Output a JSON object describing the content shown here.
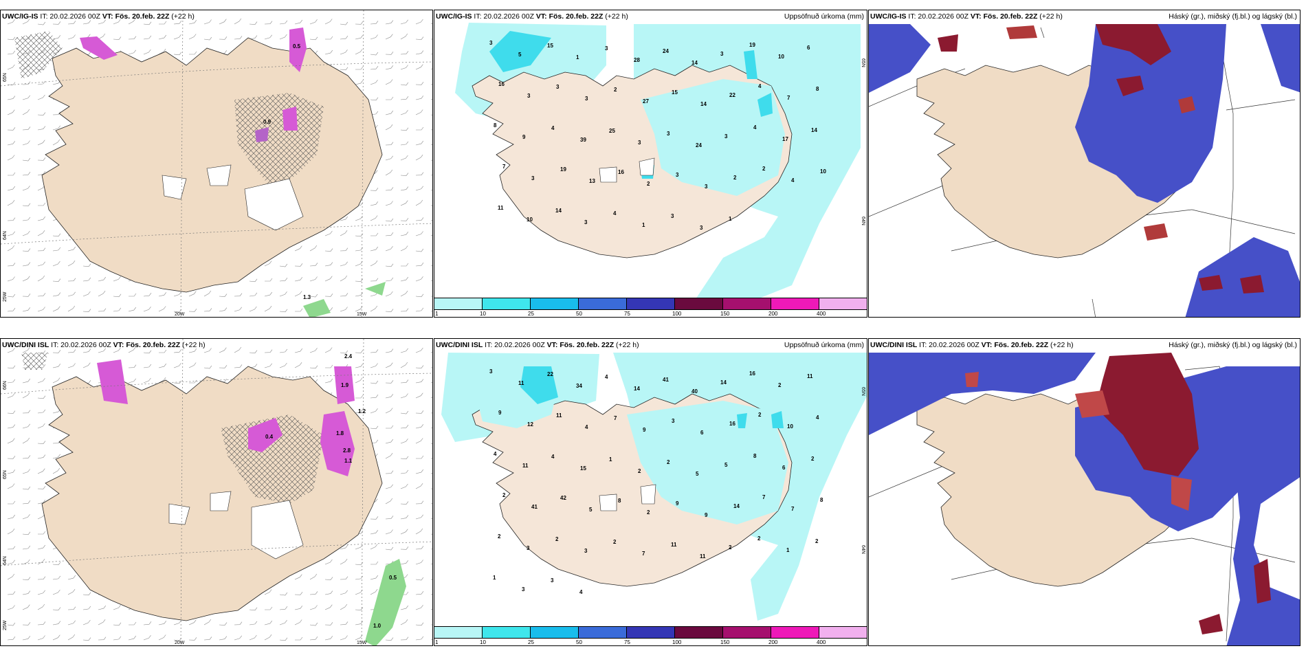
{
  "colors": {
    "land": "#f0dcc5",
    "sea": "#ffffff",
    "precip_light": "#b8f6f6",
    "precip_mid": "#3fdcec",
    "cloud_low": "#4650c8",
    "cloud_mid": "#4a88e8",
    "cloud_high": "#8b1a30",
    "snow_hatch": "#555555",
    "magenta": "#d65ad6",
    "green": "#8ed88e"
  },
  "panels": [
    {
      "id": "ig-wind",
      "title_model": "UWC/IG-IS",
      "title_it": "IT: 20.02.2026 00Z",
      "title_vt_label": "VT:",
      "title_vt": "Fös. 20.feb. 22Z",
      "title_lead": "(+22 h)",
      "right_title": "",
      "lon_labels": [
        "20W",
        "15W"
      ],
      "lat_labels": [
        "65N",
        "64N",
        "25W"
      ],
      "values": [
        "1.3",
        "0.9",
        "0.5"
      ]
    },
    {
      "id": "ig-precip",
      "title_model": "UWC/IG-IS",
      "title_it": "IT: 20.02.2026 00Z",
      "title_vt_label": "VT:",
      "title_vt": "Fös. 20.feb. 22Z",
      "title_lead": "(+22 h)",
      "right_title": "Uppsöfnuð úrkoma (mm)",
      "lat_labels": [
        "65N",
        "64N"
      ],
      "values": [
        "3",
        "5",
        "15",
        "1",
        "3",
        "28",
        "24",
        "14",
        "3",
        "19",
        "10",
        "6",
        "16",
        "3",
        "3",
        "3",
        "2",
        "27",
        "15",
        "14",
        "22",
        "4",
        "7",
        "8",
        "8",
        "9",
        "4",
        "39",
        "25",
        "3",
        "3",
        "24",
        "3",
        "4",
        "17",
        "14",
        "7",
        "3",
        "19",
        "13",
        "16",
        "2",
        "3",
        "3",
        "2",
        "2",
        "4",
        "10",
        "11",
        "10",
        "14",
        "3",
        "4",
        "1",
        "3",
        "3",
        "1"
      ]
    },
    {
      "id": "ig-cloud",
      "title_model": "UWC/IG-IS",
      "title_it": "IT: 20.02.2026 00Z",
      "title_vt_label": "VT:",
      "title_vt": "Fös. 20.feb. 22Z",
      "title_lead": "(+22 h)",
      "right_title": "Háský (gr.), miðský (fj.bl.) og lágský (bl.)"
    },
    {
      "id": "dini-wind",
      "title_model": "UWC/DINI ISL",
      "title_it": "IT: 20.02.2026 00Z",
      "title_vt_label": "VT:",
      "title_vt": "Fös. 20.feb. 22Z",
      "title_lead": "(+22 h)",
      "right_title": "",
      "lon_labels": [
        "20W",
        "15W"
      ],
      "lat_labels": [
        "66N",
        "65N",
        "64N",
        "25W"
      ],
      "values": [
        "2.4",
        "1.9",
        "1.2",
        "1.8",
        "2.8",
        "1.1",
        "0.5",
        "1.0",
        "0.4"
      ]
    },
    {
      "id": "dini-precip",
      "title_model": "UWC/DINI ISL",
      "title_it": "IT: 20.02.2026 00Z",
      "title_vt_label": "VT:",
      "title_vt": "Fös. 20.feb. 22Z",
      "title_lead": "(+22 h)",
      "right_title": "Uppsöfnuð úrkoma (mm)",
      "lat_labels": [
        "65N",
        "64N"
      ],
      "values": [
        "3",
        "11",
        "22",
        "34",
        "4",
        "14",
        "41",
        "40",
        "14",
        "16",
        "2",
        "11",
        "9",
        "12",
        "11",
        "4",
        "7",
        "9",
        "3",
        "6",
        "16",
        "2",
        "10",
        "4",
        "4",
        "11",
        "4",
        "15",
        "1",
        "2",
        "2",
        "5",
        "5",
        "8",
        "6",
        "2",
        "2",
        "41",
        "42",
        "5",
        "8",
        "2",
        "9",
        "9",
        "14",
        "7",
        "7",
        "8",
        "2",
        "3",
        "2",
        "3",
        "2",
        "7",
        "11",
        "11",
        "2",
        "2",
        "1",
        "2",
        "1",
        "3",
        "3",
        "4"
      ]
    },
    {
      "id": "dini-cloud",
      "title_model": "UWC/DINI ISL",
      "title_it": "IT: 20.02.2026 00Z",
      "title_vt_label": "VT:",
      "title_vt": "Fös. 20.feb. 22Z",
      "title_lead": "(+22 h)",
      "right_title": "Háský (gr.), miðský (fj.bl.) og lágský (bl.)"
    }
  ],
  "colorbar": {
    "colors": [
      "#b8f6f6",
      "#3fe6ec",
      "#19bdec",
      "#3a6bd9",
      "#3436b5",
      "#6a0a3e",
      "#a5106e",
      "#ee19b8",
      "#f1b0ee"
    ],
    "labels": [
      "1",
      "10",
      "25",
      "50",
      "75",
      "100",
      "150",
      "200",
      "400"
    ]
  }
}
